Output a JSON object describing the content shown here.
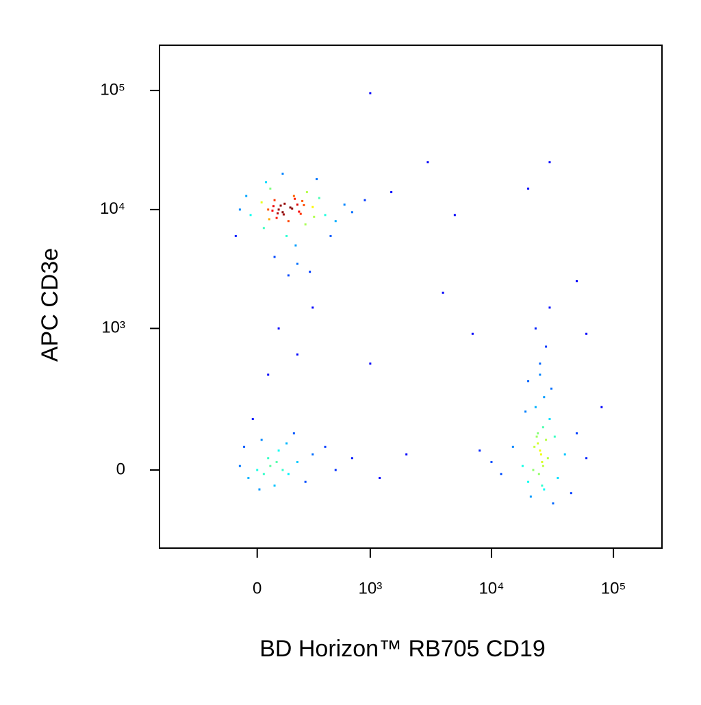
{
  "chart_data": {
    "type": "scatter",
    "x_label": "BD Horizon™ RB705 CD19",
    "y_label": "APC CD3e",
    "xscale": "biexponential",
    "yscale": "biexponential",
    "xlim": [
      -740,
      250000
    ],
    "ylim": [
      -280,
      240000
    ],
    "xticks": [
      0,
      {
        "value": 1000,
        "label": "10³"
      },
      {
        "value": 10000,
        "label": "10⁴"
      },
      {
        "value": 100000,
        "label": "10⁵"
      }
    ],
    "yticks": [
      0,
      {
        "value": 1000,
        "label": "10³"
      },
      {
        "value": 10000,
        "label": "10⁴"
      },
      {
        "value": 100000,
        "label": "10⁵"
      }
    ],
    "x": [
      50,
      120,
      200,
      80,
      150,
      300,
      -30,
      180,
      250,
      100,
      60,
      400,
      20,
      140,
      220,
      90,
      170,
      130,
      70,
      110,
      350,
      500,
      -80,
      -50,
      30,
      260,
      190,
      600,
      450,
      40,
      120,
      330,
      80,
      200,
      150,
      280,
      -100,
      700,
      900,
      1500,
      210,
      160,
      95,
      230,
      75,
      310,
      55,
      185,
      125,
      240,
      25000,
      22000,
      28000,
      20000,
      30000,
      26000,
      24000,
      18000,
      35000,
      15000,
      27000,
      23000,
      40000,
      12000,
      31000,
      25000,
      21000,
      29000,
      26500,
      24500,
      33000,
      19000,
      45000,
      28000,
      23000,
      30000,
      25000,
      27000,
      22500,
      26000,
      10000,
      8000,
      50000,
      60000,
      20000,
      32000,
      24000,
      25500,
      26500,
      23500,
      0,
      50,
      -40,
      100,
      150,
      200,
      -80,
      20,
      80,
      300,
      120,
      -20,
      250,
      400,
      60,
      10,
      180,
      -60,
      500,
      90,
      30,
      140,
      700,
      1200,
      2000,
      1000,
      3000,
      30000,
      5000,
      4000,
      7000,
      50000,
      20000,
      100,
      200,
      50,
      300,
      1000,
      60000,
      80000
    ],
    "y": [
      10000,
      9500,
      11000,
      12000,
      8000,
      10500,
      9000,
      13000,
      7500,
      10000,
      15000,
      9000,
      11500,
      6000,
      9200,
      8500,
      10200,
      11200,
      9800,
      10800,
      12500,
      8000,
      10000,
      13000,
      7000,
      14000,
      5000,
      11000,
      6000,
      17000,
      20000,
      18000,
      4000,
      3500,
      2800,
      3000,
      6000,
      9500,
      12000,
      14000,
      9600,
      10400,
      9300,
      11800,
      10700,
      8700,
      8300,
      12300,
      9100,
      10900,
      50,
      0,
      80,
      -30,
      150,
      20,
      100,
      10,
      -20,
      60,
      -50,
      200,
      40,
      -10,
      300,
      500,
      -70,
      30,
      120,
      -10,
      90,
      180,
      -60,
      700,
      1000,
      1500,
      400,
      250,
      60,
      -40,
      20,
      50,
      100,
      30,
      350,
      -90,
      70,
      40,
      10,
      90,
      0,
      30,
      -20,
      50,
      -10,
      20,
      10,
      80,
      -40,
      40,
      0,
      150,
      -30,
      60,
      10,
      -50,
      100,
      60,
      0,
      20,
      -10,
      70,
      30,
      -20,
      40,
      95000,
      25000,
      25000,
      9000,
      2000,
      900,
      2500,
      15000,
      1000,
      600,
      400,
      1500,
      500,
      900,
      200
    ]
  }
}
